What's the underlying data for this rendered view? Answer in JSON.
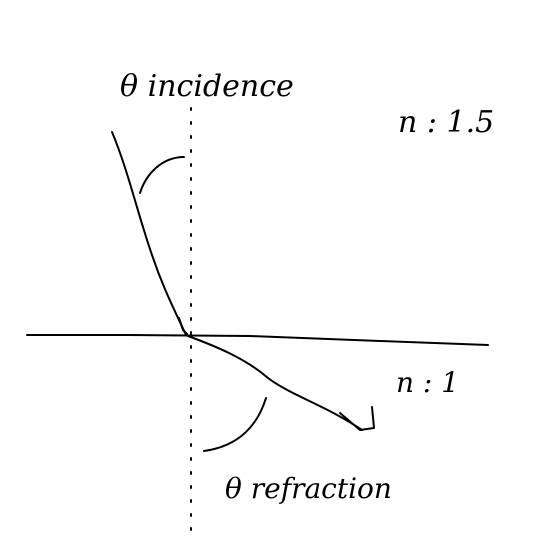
{
  "labels": {
    "theta_incidence": "θ incidence",
    "theta_refraction": "θ refraction",
    "n_top": "n : 1.5",
    "n_bottom": "n : 1"
  },
  "colors": {
    "ink": "#000000",
    "background": "#ffffff"
  }
}
